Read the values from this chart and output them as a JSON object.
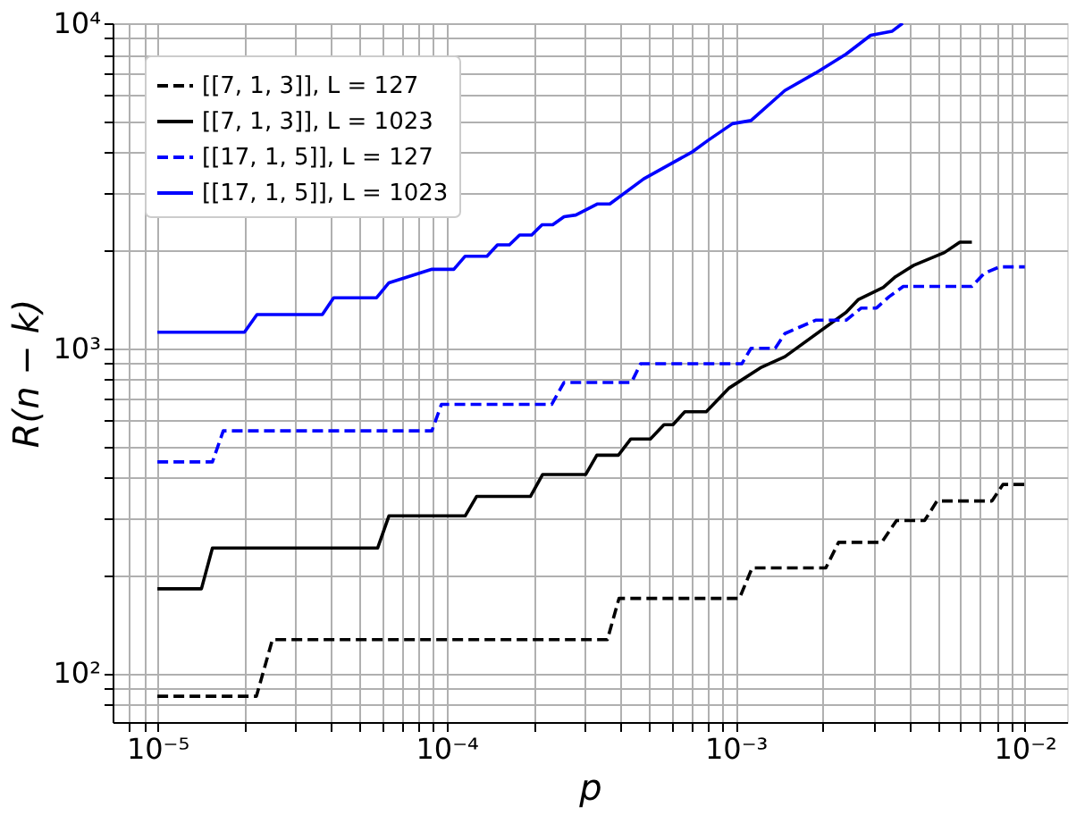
{
  "chart_data": {
    "type": "line",
    "xlabel": "p",
    "ylabel": "R(n − k)",
    "log": "xy",
    "grid": true,
    "legend": "top left",
    "marker": "none",
    "xlim": [
      7e-06,
      0.014
    ],
    "ylim": [
      70.8,
      10000
    ],
    "xticks": [
      {
        "value": 8e-06,
        "label": null
      },
      {
        "value": 9e-06,
        "label": null
      },
      {
        "value": 1e-05,
        "label": "10⁻⁵"
      },
      {
        "value": 2e-05,
        "label": null
      },
      {
        "value": 3e-05,
        "label": null
      },
      {
        "value": 4e-05,
        "label": null
      },
      {
        "value": 5e-05,
        "label": null
      },
      {
        "value": 6e-05,
        "label": null
      },
      {
        "value": 7e-05,
        "label": null
      },
      {
        "value": 8e-05,
        "label": null
      },
      {
        "value": 9e-05,
        "label": null
      },
      {
        "value": 0.0001,
        "label": "10⁻⁴"
      },
      {
        "value": 0.0002,
        "label": null
      },
      {
        "value": 0.0003,
        "label": null
      },
      {
        "value": 0.0004,
        "label": null
      },
      {
        "value": 0.0005,
        "label": null
      },
      {
        "value": 0.0006,
        "label": null
      },
      {
        "value": 0.0007,
        "label": null
      },
      {
        "value": 0.0008,
        "label": null
      },
      {
        "value": 0.0009,
        "label": null
      },
      {
        "value": 0.001,
        "label": "10⁻³"
      },
      {
        "value": 0.002,
        "label": null
      },
      {
        "value": 0.003,
        "label": null
      },
      {
        "value": 0.004,
        "label": null
      },
      {
        "value": 0.005,
        "label": null
      },
      {
        "value": 0.006,
        "label": null
      },
      {
        "value": 0.007,
        "label": null
      },
      {
        "value": 0.008,
        "label": null
      },
      {
        "value": 0.009,
        "label": null
      },
      {
        "value": 0.01,
        "label": "10⁻²"
      }
    ],
    "yticks": [
      {
        "value": 80,
        "label": null
      },
      {
        "value": 90,
        "label": null
      },
      {
        "value": 100,
        "label": "10²"
      },
      {
        "value": 200,
        "label": null
      },
      {
        "value": 300,
        "label": null
      },
      {
        "value": 400,
        "label": null
      },
      {
        "value": 500,
        "label": null
      },
      {
        "value": 600,
        "label": null
      },
      {
        "value": 700,
        "label": null
      },
      {
        "value": 800,
        "label": null
      },
      {
        "value": 900,
        "label": null
      },
      {
        "value": 1000,
        "label": "10³"
      },
      {
        "value": 2000,
        "label": null
      },
      {
        "value": 3000,
        "label": null
      },
      {
        "value": 4000,
        "label": null
      },
      {
        "value": 5000,
        "label": null
      },
      {
        "value": 6000,
        "label": null
      },
      {
        "value": 7000,
        "label": null
      },
      {
        "value": 8000,
        "label": null
      },
      {
        "value": 9000,
        "label": null
      },
      {
        "value": 10000,
        "label": "10⁴"
      }
    ],
    "series": [
      {
        "name": "[[7, 1, 3]],   L = 127",
        "color": "#000000",
        "line_style": "dashed",
        "x": [
          1e-05,
          2.2e-05,
          2.5e-05,
          0.00036,
          0.000395,
          0.00103,
          0.00114,
          0.00205,
          0.00227,
          0.0032,
          0.0036,
          0.0045,
          0.00497,
          0.0077,
          0.0084,
          0.01
        ],
        "values": [
          85,
          85,
          127,
          127,
          170,
          170,
          211,
          211,
          253,
          253,
          295,
          295,
          339,
          339,
          381,
          381
        ]
      },
      {
        "name": "[[7, 1, 3]],   L = 1023",
        "color": "#000000",
        "line_style": "solid",
        "x": [
          1e-05,
          1.42e-05,
          1.55e-05,
          5.78e-05,
          6.32e-05,
          0.000116,
          0.000127,
          0.000195,
          0.000215,
          0.000303,
          0.000331,
          0.000393,
          0.000434,
          0.000507,
          0.000565,
          0.000607,
          0.000667,
          0.000791,
          0.00095,
          0.00123,
          0.00148,
          0.00241,
          0.00265,
          0.00324,
          0.00357,
          0.00413,
          0.00527,
          0.00596,
          0.00656
        ],
        "values": [
          182,
          182,
          243,
          243,
          305,
          305,
          350,
          350,
          409,
          409,
          469,
          469,
          526,
          526,
          582,
          582,
          638,
          638,
          755,
          875,
          942,
          1290,
          1410,
          1540,
          1660,
          1800,
          1970,
          2120,
          2120
        ]
      },
      {
        "name": "[[17, 1, 5]], L = 127",
        "color": "#0000ff",
        "line_style": "dashed",
        "x": [
          1e-05,
          1.55e-05,
          1.69e-05,
          8.9e-05,
          9.6e-05,
          0.000231,
          0.000255,
          0.000436,
          0.000469,
          0.00105,
          0.00113,
          0.00137,
          0.00148,
          0.00189,
          0.00241,
          0.00272,
          0.00307,
          0.00339,
          0.0038,
          0.00656,
          0.00724,
          0.00818,
          0.01
        ],
        "values": [
          447,
          447,
          557,
          557,
          672,
          672,
          785,
          785,
          896,
          896,
          1000,
          1000,
          1110,
          1220,
          1220,
          1330,
          1330,
          1440,
          1550,
          1550,
          1700,
          1780,
          1780
        ]
      },
      {
        "name": "[[17, 1, 5]], L = 1023",
        "color": "#0000ff",
        "line_style": "solid",
        "x": [
          1e-05,
          2e-05,
          2.21e-05,
          3.72e-05,
          4.07e-05,
          5.73e-05,
          6.32e-05,
          8.9e-05,
          0.000106,
          0.000116,
          0.000138,
          0.00015,
          0.000165,
          0.000179,
          0.000197,
          0.000214,
          0.000233,
          0.000255,
          0.00028,
          0.000333,
          0.000367,
          0.000481,
          0.000711,
          0.000802,
          0.000975,
          0.00113,
          0.00148,
          0.00189,
          0.00241,
          0.00293,
          0.00347,
          0.00378
        ],
        "values": [
          1120,
          1120,
          1270,
          1270,
          1430,
          1430,
          1590,
          1750,
          1750,
          1920,
          1920,
          2080,
          2080,
          2230,
          2230,
          2400,
          2400,
          2540,
          2570,
          2780,
          2780,
          3320,
          4030,
          4360,
          4910,
          5020,
          6210,
          7030,
          8040,
          9180,
          9440,
          10000
        ]
      }
    ]
  }
}
